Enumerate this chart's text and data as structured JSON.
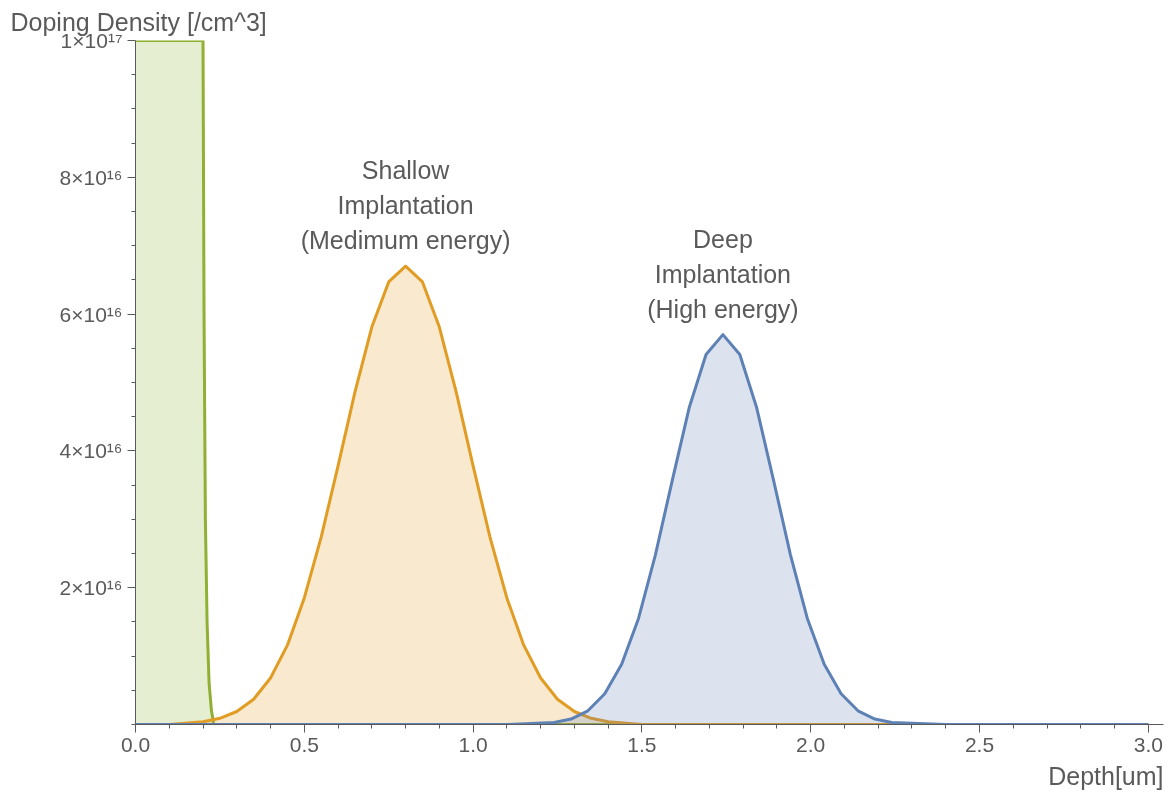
{
  "chart_data": {
    "type": "area",
    "xlabel": "Depth[um]",
    "ylabel": "Doping Density [/cm^3]",
    "xlim": [
      0,
      3.045
    ],
    "ylim": [
      0,
      1e+17
    ],
    "xticks": [
      {
        "value": 0,
        "label": "0.0"
      },
      {
        "value": 0.1,
        "label": null
      },
      {
        "value": 0.2,
        "label": null
      },
      {
        "value": 0.3,
        "label": null
      },
      {
        "value": 0.4,
        "label": null
      },
      {
        "value": 0.5,
        "label": "0.5"
      },
      {
        "value": 0.6,
        "label": null
      },
      {
        "value": 0.7,
        "label": null
      },
      {
        "value": 0.8,
        "label": null
      },
      {
        "value": 0.9,
        "label": null
      },
      {
        "value": 1,
        "label": "1.0"
      },
      {
        "value": 1.1,
        "label": null
      },
      {
        "value": 1.2,
        "label": null
      },
      {
        "value": 1.3,
        "label": null
      },
      {
        "value": 1.4,
        "label": null
      },
      {
        "value": 1.5,
        "label": "1.5"
      },
      {
        "value": 1.6,
        "label": null
      },
      {
        "value": 1.7,
        "label": null
      },
      {
        "value": 1.8,
        "label": null
      },
      {
        "value": 1.9,
        "label": null
      },
      {
        "value": 2,
        "label": "2.0"
      },
      {
        "value": 2.1,
        "label": null
      },
      {
        "value": 2.2,
        "label": null
      },
      {
        "value": 2.3,
        "label": null
      },
      {
        "value": 2.4,
        "label": null
      },
      {
        "value": 2.5,
        "label": "2.5"
      },
      {
        "value": 2.6,
        "label": null
      },
      {
        "value": 2.7,
        "label": null
      },
      {
        "value": 2.8,
        "label": null
      },
      {
        "value": 2.9,
        "label": null
      },
      {
        "value": 3,
        "label": "3.0"
      }
    ],
    "yticks": [
      {
        "value": 0,
        "label": null
      },
      {
        "value": 5000000000000000.0,
        "label": null
      },
      {
        "value": 1e+16,
        "label": null
      },
      {
        "value": 1.5e+16,
        "label": null
      },
      {
        "value": 2e+16,
        "label": "2×10¹⁶"
      },
      {
        "value": 2.5e+16,
        "label": null
      },
      {
        "value": 3e+16,
        "label": null
      },
      {
        "value": 3.5e+16,
        "label": null
      },
      {
        "value": 4e+16,
        "label": "4×10¹⁶"
      },
      {
        "value": 4.5e+16,
        "label": null
      },
      {
        "value": 5e+16,
        "label": null
      },
      {
        "value": 5.5e+16,
        "label": null
      },
      {
        "value": 6e+16,
        "label": "6×10¹⁶"
      },
      {
        "value": 6.5e+16,
        "label": null
      },
      {
        "value": 7e+16,
        "label": null
      },
      {
        "value": 7.5e+16,
        "label": null
      },
      {
        "value": 8e+16,
        "label": "8×10¹⁶"
      },
      {
        "value": 8.5e+16,
        "label": null
      },
      {
        "value": 9e+16,
        "label": null
      },
      {
        "value": 9.5e+16,
        "label": null
      },
      {
        "value": 1e+17,
        "label": "1×10¹⁷"
      }
    ],
    "grid": false,
    "series": [
      {
        "color": "#8fb032",
        "x": [
          0,
          0.2,
          0.203,
          0.207,
          0.212,
          0.218,
          0.225,
          0.232,
          3.0
        ],
        "values": [
          1e+17,
          1e+17,
          6e+16,
          3e+16,
          1.5e+16,
          6000000000000000.0,
          2000000000000000.0,
          0,
          0
        ]
      },
      {
        "color": "#e19c24",
        "x": [
          0,
          0.1,
          0.2,
          0.25,
          0.3,
          0.35,
          0.4,
          0.45,
          0.5,
          0.55,
          0.6,
          0.65,
          0.7,
          0.75,
          0.8,
          0.85,
          0.9,
          0.95,
          1.0,
          1.05,
          1.1,
          1.15,
          1.2,
          1.25,
          1.3,
          1.35,
          1.4,
          1.5,
          3.0
        ],
        "values": [
          0,
          0,
          400000000000000.0,
          900000000000000.0,
          1900000000000000.0,
          3700000000000000.0,
          6800000000000000.0,
          1.16e+16,
          1.85e+16,
          2.74e+16,
          3.78e+16,
          4.86e+16,
          5.81e+16,
          6.47e+16,
          6.7e+16,
          6.47e+16,
          5.81e+16,
          4.86e+16,
          3.78e+16,
          2.74e+16,
          1.85e+16,
          1.16e+16,
          6800000000000000.0,
          3700000000000000.0,
          1900000000000000.0,
          900000000000000.0,
          400000000000000.0,
          0,
          0
        ]
      },
      {
        "color": "#5e81b5",
        "x": [
          0,
          1.1,
          1.24,
          1.29,
          1.34,
          1.39,
          1.44,
          1.49,
          1.54,
          1.59,
          1.64,
          1.69,
          1.74,
          1.79,
          1.84,
          1.89,
          1.94,
          1.99,
          2.04,
          2.09,
          2.14,
          2.19,
          2.24,
          2.4,
          3.0
        ],
        "values": [
          0,
          0,
          300000000000000.0,
          800000000000000.0,
          2000000000000000.0,
          4500000000000000.0,
          8800000000000000.0,
          1.55e+16,
          2.48e+16,
          3.57e+16,
          4.63e+16,
          5.41e+16,
          5.7e+16,
          5.41e+16,
          4.63e+16,
          3.57e+16,
          2.48e+16,
          1.55e+16,
          8800000000000000.0,
          4500000000000000.0,
          2000000000000000.0,
          800000000000000.0,
          300000000000000.0,
          0,
          0
        ]
      }
    ],
    "annotations": [
      {
        "text": "Shallow\nImplantation\n(Medimum energy)",
        "x": 0.8,
        "y": 6.7e+16
      },
      {
        "text": "Deep\nImplantation\n(High energy)",
        "x": 1.74,
        "y": 5.7e+16
      }
    ]
  }
}
